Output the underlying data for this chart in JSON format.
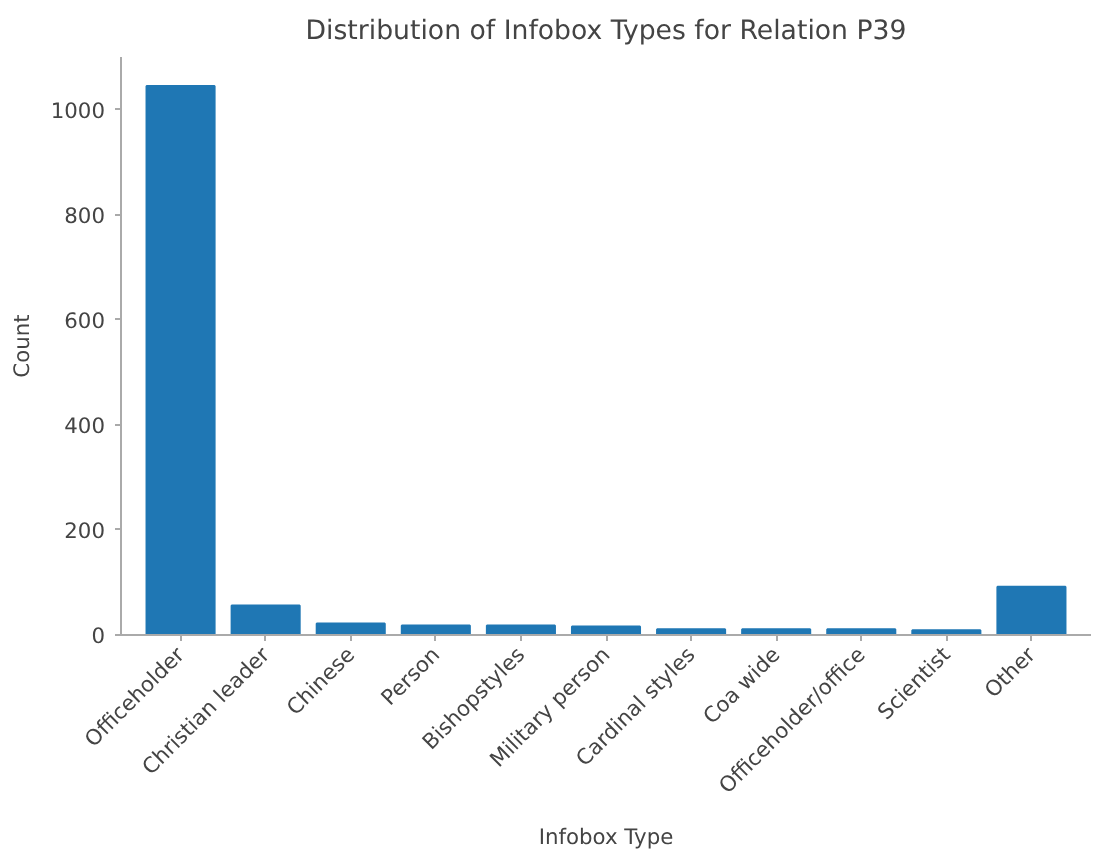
{
  "chart_data": {
    "type": "bar",
    "title": "Distribution of Infobox Types for Relation P39",
    "xlabel": "Infobox Type",
    "ylabel": "Count",
    "categories": [
      "Officeholder",
      "Christian leader",
      "Chinese",
      "Person",
      "Bishopstyles",
      "Military person",
      "Cardinal styles",
      "Coa wide",
      "Officeholder/office",
      "Scientist",
      "Other"
    ],
    "values": [
      1045,
      56,
      22,
      18,
      18,
      16,
      11,
      11,
      11,
      9,
      92
    ],
    "color": "#1f77b4",
    "ylim": [
      0,
      1100
    ],
    "yticks": [
      0,
      200,
      400,
      600,
      800,
      1000
    ],
    "grid": false
  }
}
